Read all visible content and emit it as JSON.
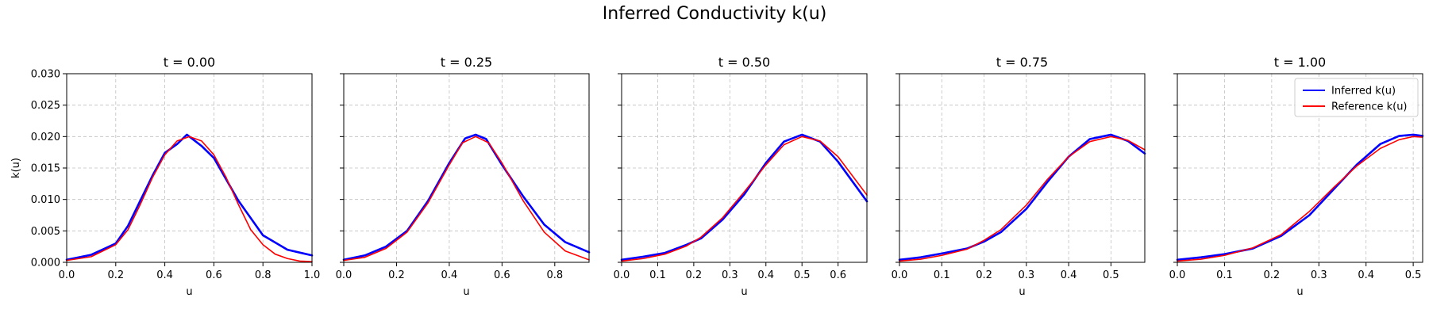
{
  "chart_data": {
    "type": "line",
    "title": "Inferred Conductivity k(u)",
    "ylabel": "k(u)",
    "xlabel": "u",
    "ylim": [
      0,
      0.03
    ],
    "yticks": [
      0.0,
      0.005,
      0.01,
      0.015,
      0.02,
      0.025,
      0.03
    ],
    "ytick_labels": [
      "0.000",
      "0.005",
      "0.010",
      "0.015",
      "0.020",
      "0.025",
      "0.030"
    ],
    "grid": true,
    "legend": {
      "location": "upper-right",
      "panel_index": 4,
      "entries": [
        {
          "label": "Inferred k(u)",
          "color": "#0000ff"
        },
        {
          "label": "Reference k(u)",
          "color": "#ff0000"
        }
      ]
    },
    "panels": [
      {
        "title": "t = 0.00",
        "xlim": [
          0,
          1.0
        ],
        "xticks": [
          0.0,
          0.2,
          0.4,
          0.6,
          0.8,
          1.0
        ],
        "xtick_labels": [
          "0.0",
          "0.2",
          "0.4",
          "0.6",
          "0.8",
          "1.0"
        ],
        "series": [
          {
            "name": "Inferred k(u)",
            "color": "#0000ff",
            "x": [
              0.0,
              0.1,
              0.2,
              0.25,
              0.3,
              0.35,
              0.4,
              0.45,
              0.49,
              0.55,
              0.6,
              0.7,
              0.8,
              0.9,
              1.0
            ],
            "y": [
              0.0004,
              0.0012,
              0.003,
              0.0058,
              0.0098,
              0.0138,
              0.0174,
              0.0188,
              0.0203,
              0.0185,
              0.0166,
              0.0098,
              0.0043,
              0.002,
              0.0011
            ]
          },
          {
            "name": "Reference k(u)",
            "color": "#ff0000",
            "x": [
              0.0,
              0.1,
              0.2,
              0.25,
              0.3,
              0.35,
              0.4,
              0.45,
              0.5,
              0.55,
              0.6,
              0.65,
              0.7,
              0.75,
              0.8,
              0.85,
              0.9,
              0.95,
              1.0
            ],
            "y": [
              0.0003,
              0.0009,
              0.0028,
              0.0052,
              0.0092,
              0.0135,
              0.0171,
              0.0193,
              0.02,
              0.0193,
              0.0171,
              0.0135,
              0.0092,
              0.0052,
              0.0028,
              0.0013,
              0.0006,
              0.0002,
              0.0001
            ]
          }
        ]
      },
      {
        "title": "t = 0.25",
        "xlim": [
          0,
          0.93
        ],
        "xticks": [
          0.0,
          0.2,
          0.4,
          0.6,
          0.8
        ],
        "xtick_labels": [
          "0.0",
          "0.2",
          "0.4",
          "0.6",
          "0.8"
        ],
        "series": [
          {
            "name": "Inferred k(u)",
            "color": "#0000ff",
            "x": [
              0.0,
              0.08,
              0.16,
              0.24,
              0.32,
              0.4,
              0.46,
              0.5,
              0.54,
              0.6,
              0.68,
              0.76,
              0.84,
              0.93
            ],
            "y": [
              0.0004,
              0.0011,
              0.0025,
              0.005,
              0.0098,
              0.0158,
              0.0197,
              0.0203,
              0.0196,
              0.0155,
              0.0105,
              0.006,
              0.0032,
              0.0016
            ]
          },
          {
            "name": "Reference k(u)",
            "color": "#ff0000",
            "x": [
              0.0,
              0.08,
              0.16,
              0.24,
              0.32,
              0.4,
              0.45,
              0.5,
              0.55,
              0.6,
              0.68,
              0.76,
              0.84,
              0.93
            ],
            "y": [
              0.0003,
              0.0008,
              0.0022,
              0.0048,
              0.0095,
              0.0155,
              0.019,
              0.02,
              0.019,
              0.0158,
              0.0098,
              0.0048,
              0.0018,
              0.0004
            ]
          }
        ]
      },
      {
        "title": "t = 0.50",
        "xlim": [
          0,
          0.68
        ],
        "xticks": [
          0.0,
          0.1,
          0.2,
          0.3,
          0.4,
          0.5,
          0.6
        ],
        "xtick_labels": [
          "0.0",
          "0.1",
          "0.2",
          "0.3",
          "0.4",
          "0.5",
          "0.6"
        ],
        "series": [
          {
            "name": "Inferred k(u)",
            "color": "#0000ff",
            "x": [
              0.0,
              0.06,
              0.12,
              0.18,
              0.22,
              0.28,
              0.34,
              0.4,
              0.45,
              0.5,
              0.55,
              0.6,
              0.68
            ],
            "y": [
              0.0004,
              0.0009,
              0.0015,
              0.0028,
              0.0038,
              0.0068,
              0.0108,
              0.0158,
              0.0192,
              0.0203,
              0.0192,
              0.016,
              0.0097
            ]
          },
          {
            "name": "Reference k(u)",
            "color": "#ff0000",
            "x": [
              0.0,
              0.06,
              0.12,
              0.18,
              0.22,
              0.28,
              0.34,
              0.4,
              0.45,
              0.5,
              0.55,
              0.6,
              0.68
            ],
            "y": [
              0.0002,
              0.0006,
              0.0013,
              0.0026,
              0.004,
              0.0071,
              0.0112,
              0.0155,
              0.0187,
              0.02,
              0.0193,
              0.0168,
              0.0107
            ]
          }
        ]
      },
      {
        "title": "t = 0.75",
        "xlim": [
          0,
          0.58
        ],
        "xticks": [
          0.0,
          0.1,
          0.2,
          0.3,
          0.4,
          0.5
        ],
        "xtick_labels": [
          "0.0",
          "0.1",
          "0.2",
          "0.3",
          "0.4",
          "0.5"
        ],
        "series": [
          {
            "name": "Inferred k(u)",
            "color": "#0000ff",
            "x": [
              0.0,
              0.05,
              0.1,
              0.16,
              0.2,
              0.24,
              0.3,
              0.35,
              0.4,
              0.45,
              0.5,
              0.54,
              0.58
            ],
            "y": [
              0.0004,
              0.0008,
              0.0014,
              0.0022,
              0.0033,
              0.0048,
              0.0085,
              0.0128,
              0.0168,
              0.0196,
              0.0203,
              0.0193,
              0.0173
            ]
          },
          {
            "name": "Reference k(u)",
            "color": "#ff0000",
            "x": [
              0.0,
              0.05,
              0.1,
              0.16,
              0.2,
              0.24,
              0.3,
              0.35,
              0.4,
              0.45,
              0.5,
              0.54,
              0.58
            ],
            "y": [
              0.0002,
              0.0005,
              0.0011,
              0.0021,
              0.0035,
              0.0052,
              0.0091,
              0.0132,
              0.0168,
              0.0192,
              0.02,
              0.0194,
              0.0179
            ]
          }
        ]
      },
      {
        "title": "t = 1.00",
        "xlim": [
          0,
          0.52
        ],
        "xticks": [
          0.0,
          0.1,
          0.2,
          0.3,
          0.4,
          0.5
        ],
        "xtick_labels": [
          "0.0",
          "0.1",
          "0.2",
          "0.3",
          "0.4",
          "0.5"
        ],
        "series": [
          {
            "name": "Inferred k(u)",
            "color": "#0000ff",
            "x": [
              0.0,
              0.05,
              0.1,
              0.16,
              0.22,
              0.28,
              0.33,
              0.38,
              0.43,
              0.47,
              0.5,
              0.52
            ],
            "y": [
              0.0004,
              0.0008,
              0.0013,
              0.0022,
              0.0042,
              0.0075,
              0.0115,
              0.0155,
              0.0188,
              0.0201,
              0.0203,
              0.0201
            ]
          },
          {
            "name": "Reference k(u)",
            "color": "#ff0000",
            "x": [
              0.0,
              0.05,
              0.1,
              0.16,
              0.22,
              0.28,
              0.33,
              0.38,
              0.43,
              0.47,
              0.5,
              0.52
            ],
            "y": [
              0.0002,
              0.0005,
              0.0011,
              0.0023,
              0.0044,
              0.0081,
              0.0118,
              0.0153,
              0.0181,
              0.0195,
              0.02,
              0.0199
            ]
          }
        ]
      }
    ]
  }
}
